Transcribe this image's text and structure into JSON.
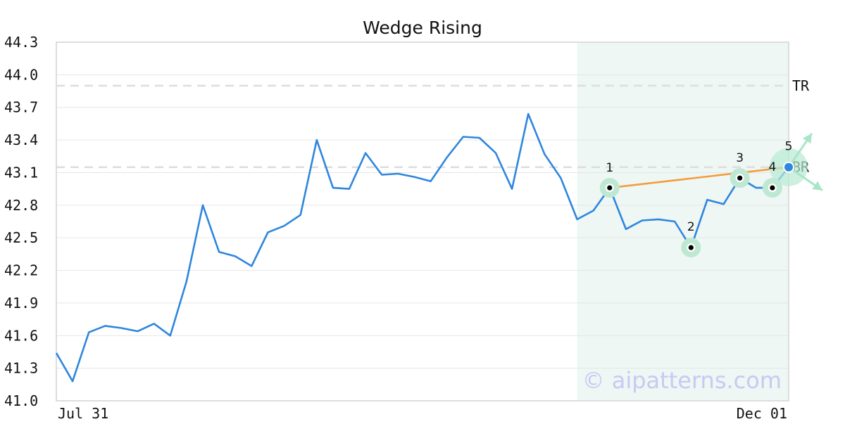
{
  "chart_data": {
    "type": "line",
    "title": "Wedge Rising",
    "ylim": [
      41.0,
      44.3
    ],
    "y_ticks": [
      "44.3",
      "44.0",
      "43.7",
      "43.4",
      "43.1",
      "42.8",
      "42.5",
      "42.2",
      "41.9",
      "41.6",
      "41.3",
      "41.0"
    ],
    "x_ticks": [
      "Jul 31",
      "Dec 01"
    ],
    "grid": true,
    "series": [
      {
        "color": "#2e86de",
        "values": [
          41.44,
          41.18,
          41.63,
          41.69,
          41.67,
          41.64,
          41.71,
          41.6,
          42.1,
          42.8,
          42.37,
          42.33,
          42.24,
          42.55,
          42.61,
          42.71,
          43.4,
          42.96,
          42.95,
          43.28,
          43.08,
          43.09,
          43.06,
          43.02,
          43.24,
          43.43,
          43.42,
          43.28,
          42.95,
          43.64,
          43.27,
          43.05,
          42.67,
          42.75,
          42.96,
          42.58,
          42.66,
          42.67,
          42.65,
          42.41,
          42.85,
          42.81,
          43.05,
          42.96,
          42.96,
          43.15
        ]
      }
    ],
    "reference_lines": [
      {
        "label": "TR",
        "value": 43.9,
        "color": "#dddddd"
      },
      {
        "label": "BR",
        "value": 43.15,
        "color": "#dddddd"
      }
    ],
    "pattern_region": {
      "start_index": 32,
      "end_index": 45,
      "color": "#eef7f3"
    },
    "pattern_points": [
      {
        "label": "1",
        "index": 34,
        "value": 42.96
      },
      {
        "label": "2",
        "index": 39,
        "value": 42.41
      },
      {
        "label": "3",
        "index": 42,
        "value": 43.05
      },
      {
        "label": "4",
        "index": 44,
        "value": 42.96
      },
      {
        "label": "5",
        "index": 45,
        "value": 43.15
      }
    ],
    "trend_line": {
      "from_index": 34,
      "from_value": 42.96,
      "to_index": 45,
      "to_value": 43.15,
      "color": "#f39c3d"
    },
    "watermark": "© aipatterns.com"
  }
}
